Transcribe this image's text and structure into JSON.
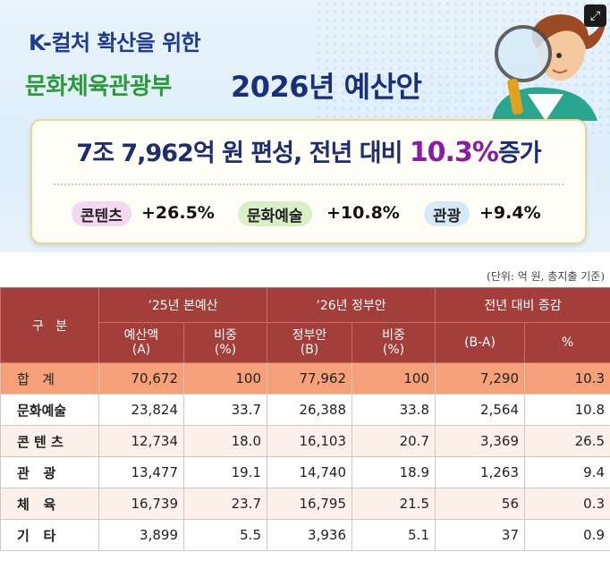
{
  "banner": {
    "title_line1": "K-컬처 확산을 위한",
    "title_ministry": "문화체육관광부",
    "title_budget": "2026년 예산안",
    "headline_prefix": "7조 7,962억 원 편성, 전년 대비 ",
    "headline_pct": "10.3%",
    "headline_suffix": "증가",
    "chips": [
      {
        "label": "콘텐츠",
        "value": "+26.5%",
        "color": "#f3d8ef"
      },
      {
        "label": "문화예술",
        "value": "+10.8%",
        "color": "#d9efc8"
      },
      {
        "label": "관광",
        "value": "+9.4%",
        "color": "#d6e9f7"
      }
    ]
  },
  "expand_icon": "expand-icon",
  "table": {
    "unit_note": "(단위: 억 원, 총지출 기준)",
    "header_category": "구   분",
    "group_headers": [
      "’25년 본예산",
      "’26년 정부안",
      "전년 대비 증감"
    ],
    "sub_headers": [
      "예산액\n(A)",
      "비중\n(%)",
      "정부안\n(B)",
      "비중\n(%)",
      "(B-A)",
      "%"
    ],
    "rows": [
      {
        "category": "합   계",
        "a": "70,672",
        "a_share": "100",
        "b": "77,962",
        "b_share": "100",
        "diff": "7,290",
        "pct": "10.3"
      },
      {
        "category": "문화예술",
        "a": "23,824",
        "a_share": "33.7",
        "b": "26,388",
        "b_share": "33.8",
        "diff": "2,564",
        "pct": "10.8"
      },
      {
        "category": "콘 텐 츠",
        "a": "12,734",
        "a_share": "18.0",
        "b": "16,103",
        "b_share": "20.7",
        "diff": "3,369",
        "pct": "26.5"
      },
      {
        "category": "관   광",
        "a": "13,477",
        "a_share": "19.1",
        "b": "14,740",
        "b_share": "18.9",
        "diff": "1,263",
        "pct": "9.4"
      },
      {
        "category": "체   육",
        "a": "16,739",
        "a_share": "23.7",
        "b": "16,795",
        "b_share": "21.5",
        "diff": "56",
        "pct": "0.3"
      },
      {
        "category": "기   타",
        "a": "3,899",
        "a_share": "5.5",
        "b": "3,936",
        "b_share": "5.1",
        "diff": "37",
        "pct": "0.9"
      }
    ]
  },
  "colors": {
    "header_bg": "#a33e3a",
    "total_row_bg": "#f6a07a",
    "alt_row_bg": "#fdf0ea",
    "headline_pct": "#8c1aa8",
    "ministry_green": "#2a9a3a",
    "navy": "#1a2f7a"
  }
}
